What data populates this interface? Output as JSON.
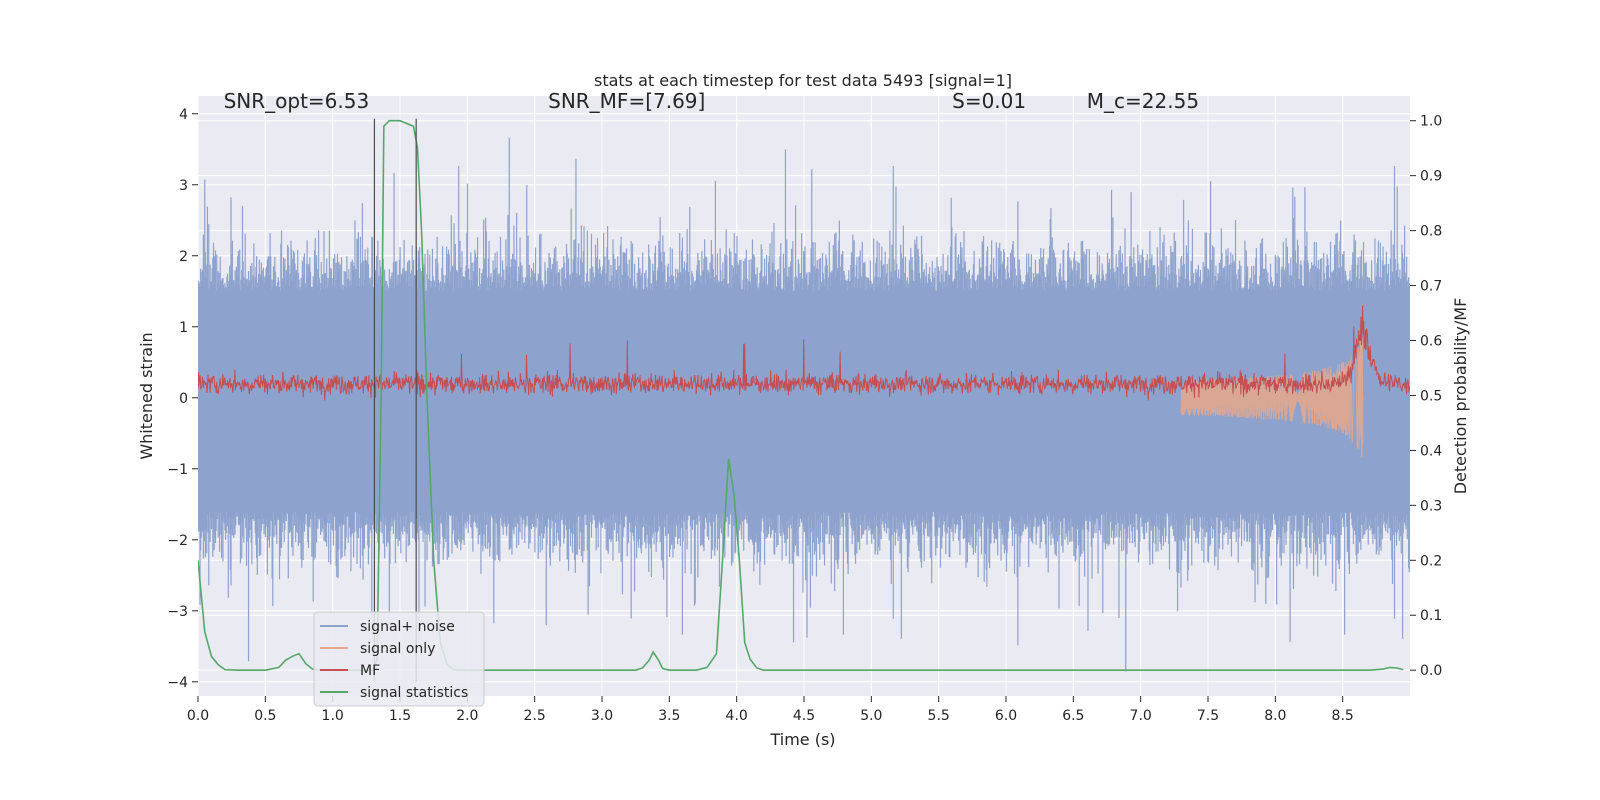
{
  "chart_data": {
    "type": "line",
    "title": "stats at each timestep for test data 5493 [signal=1]",
    "xlabel": "Time (s)",
    "ylabel": "Whitened strain",
    "ylabel_right": "Detection probability/MF",
    "xlim": [
      0.0,
      9.0
    ],
    "ylim": [
      -4.2,
      4.25
    ],
    "ylim_right": [
      -0.047,
      1.045
    ],
    "xticks": [
      0.0,
      0.5,
      1.0,
      1.5,
      2.0,
      2.5,
      3.0,
      3.5,
      4.0,
      4.5,
      5.0,
      5.5,
      6.0,
      6.5,
      7.0,
      7.5,
      8.0,
      8.5
    ],
    "xtick_labels": [
      "0.0",
      "0.5",
      "1.0",
      "1.5",
      "2.0",
      "2.5",
      "3.0",
      "3.5",
      "4.0",
      "4.5",
      "5.0",
      "5.5",
      "6.0",
      "6.5",
      "7.0",
      "7.5",
      "8.0",
      "8.5"
    ],
    "yticks": [
      -4,
      -3,
      -2,
      -1,
      0,
      1,
      2,
      3,
      4
    ],
    "ytick_labels": [
      "−4",
      "−3",
      "−2",
      "−1",
      "0",
      "1",
      "2",
      "3",
      "4"
    ],
    "yticks_right": [
      0.0,
      0.1,
      0.2,
      0.3,
      0.4,
      0.5,
      0.6,
      0.7,
      0.8,
      0.9,
      1.0
    ],
    "ytick_labels_right": [
      "0.0",
      "0.1",
      "0.2",
      "0.3",
      "0.4",
      "0.5",
      "0.6",
      "0.7",
      "0.8",
      "0.9",
      "1.0"
    ],
    "annotations": [
      {
        "text": "SNR_opt=6.53",
        "x": 0.19,
        "y": 4.08
      },
      {
        "text": "SNR_MF=[7.69]",
        "x": 2.6,
        "y": 4.08
      },
      {
        "text": "S=0.01",
        "x": 5.6,
        "y": 4.08
      },
      {
        "text": "M_c=22.55",
        "x": 6.6,
        "y": 4.08
      }
    ],
    "vlines": [
      1.31,
      1.62
    ],
    "legend": {
      "placement": "lower-left",
      "entries": [
        "signal+ noise",
        "signal only",
        "MF",
        "signal statistics"
      ]
    },
    "colors": {
      "signal_noise": "#8da2cd",
      "signal_only": "#e8a88b",
      "mf": "#c44e52",
      "signal_statistics": "#55a868",
      "plot_bg": "#eaeaf2",
      "grid": "#ffffff"
    },
    "series": [
      {
        "name": "signal+ noise",
        "axis": "left",
        "style": "noise-band",
        "envelope_low": -1.6,
        "envelope_high": 1.5,
        "peak_extent": 3.9
      },
      {
        "name": "signal only",
        "axis": "left",
        "style": "chirp",
        "start": 7.3,
        "merger": 8.65,
        "peak_amplitude": 0.6
      },
      {
        "name": "MF",
        "axis": "left",
        "style": "noise-band",
        "baseline": 0.2,
        "spread": 0.15,
        "peak": {
          "x": 8.65,
          "y": 1.3
        }
      },
      {
        "name": "signal statistics",
        "axis": "right",
        "style": "line",
        "x": [
          0.0,
          0.05,
          0.1,
          0.15,
          0.2,
          0.3,
          0.5,
          0.6,
          0.65,
          0.7,
          0.75,
          0.8,
          0.85,
          0.9,
          1.0,
          1.1,
          1.2,
          1.25,
          1.3,
          1.33,
          1.36,
          1.38,
          1.42,
          1.5,
          1.6,
          1.63,
          1.66,
          1.7,
          1.75,
          1.8,
          1.85,
          1.9,
          2.0,
          2.5,
          3.0,
          3.25,
          3.3,
          3.35,
          3.38,
          3.42,
          3.45,
          3.5,
          3.7,
          3.78,
          3.85,
          3.9,
          3.94,
          3.98,
          4.02,
          4.06,
          4.1,
          4.15,
          4.2,
          4.3,
          5.0,
          6.0,
          7.0,
          8.0,
          8.7,
          8.8,
          8.85,
          8.9,
          8.95
        ],
        "y": [
          0.2,
          0.07,
          0.025,
          0.01,
          0.001,
          0.0,
          0.0,
          0.005,
          0.018,
          0.025,
          0.03,
          0.012,
          0.002,
          0.0,
          0.0,
          0.0,
          0.0,
          0.0,
          0.0,
          0.02,
          0.5,
          0.99,
          1.0,
          1.0,
          0.99,
          0.95,
          0.8,
          0.5,
          0.2,
          0.05,
          0.01,
          0.001,
          0.0,
          0.0,
          0.0,
          0.0,
          0.004,
          0.018,
          0.033,
          0.018,
          0.003,
          0.0,
          0.0,
          0.005,
          0.03,
          0.22,
          0.385,
          0.32,
          0.2,
          0.05,
          0.02,
          0.004,
          0.0,
          0.0,
          0.0,
          0.0,
          0.0,
          0.0,
          0.0,
          0.002,
          0.005,
          0.004,
          0.001
        ]
      }
    ]
  }
}
